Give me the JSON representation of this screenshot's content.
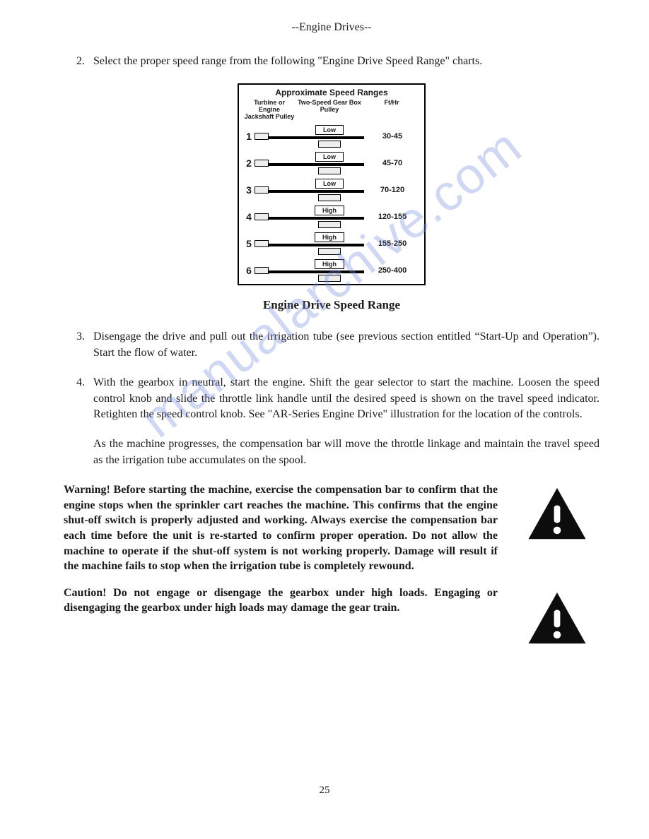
{
  "header": "--Engine Drives--",
  "watermark": "manualarchive.com",
  "items": {
    "i2": {
      "num": "2.",
      "text": "Select the proper speed range from the following \"Engine Drive Speed Range\" charts."
    },
    "i3": {
      "num": "3.",
      "text": "Disengage the drive and pull out the irrigation tube (see previous section entitled “Start-Up and Operation”). Start the flow of water."
    },
    "i4": {
      "num": "4.",
      "text": "With the gearbox in neutral, start the engine. Shift the gear selector to start the machine. Loosen the speed control knob and slide the throttle link handle until the desired speed is shown on the travel speed indicator. Retighten the speed control knob. See \"AR-Series Engine Drive\" illustration for the location of the controls."
    }
  },
  "para_after4": "As the machine progresses, the compensation bar will move the throttle linkage and maintain the travel speed as the irrigation tube accumulates on the spool.",
  "chart": {
    "title": "Approximate Speed Ranges",
    "col1": "Turbine or Engine Jackshaft Pulley",
    "col2": "Two-Speed Gear Box Pulley",
    "col3": "Ft/Hr",
    "rows": [
      {
        "n": "1",
        "gear": "Low",
        "range": "30-45"
      },
      {
        "n": "2",
        "gear": "Low",
        "range": "45-70"
      },
      {
        "n": "3",
        "gear": "Low",
        "range": "70-120"
      },
      {
        "n": "4",
        "gear": "High",
        "range": "120-155"
      },
      {
        "n": "5",
        "gear": "High",
        "range": "155-250"
      },
      {
        "n": "6",
        "gear": "High",
        "range": "250-400"
      }
    ],
    "caption": "Engine Drive Speed Range"
  },
  "warning": "Warning! Before starting the machine, exercise the compensation bar to confirm that the engine stops when the sprinkler cart reaches the machine. This confirms that the engine shut-off switch is properly adjusted and working. Always exercise the compensation bar each time before the unit is re-started to confirm proper operation. Do not allow the machine to operate if the shut-off system is not working properly. Damage will result if the machine fails to stop when the irrigation tube is completely rewound.",
  "caution": "Caution! Do not engage or disengage the gearbox under high loads. Engaging or disengaging the gearbox under high loads may damage the gear train.",
  "page_number": "25",
  "colors": {
    "text": "#1a1a1a",
    "icon": "#0d0d0d",
    "watermark": "rgba(120,140,220,0.35)"
  }
}
